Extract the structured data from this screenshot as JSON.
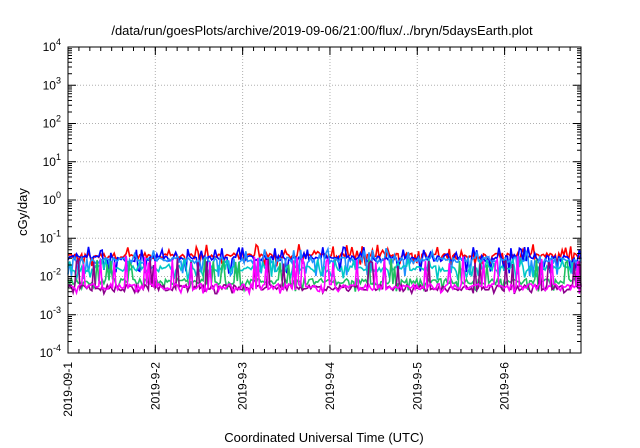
{
  "chart_data": {
    "type": "line",
    "title": "/data/run/goesPlots/archive/2019-09-06/21:00/flux/../bryn/5daysEarth.plot",
    "xlabel": "Coordinated Universal Time (UTC)",
    "ylabel": "cGy/day",
    "x_scale": "time",
    "y_scale": "log",
    "xlim": [
      "2019-09-01",
      "2019-09-06 21:00"
    ],
    "ylim": [
      0.0001,
      10000
    ],
    "x_ticks": [
      "2019-09-1",
      "2019-9-2",
      "2019-9-3",
      "2019-9-4",
      "2019-9-5",
      "2019-9-6"
    ],
    "y_ticks": [
      {
        "base": "10",
        "exp": "-4"
      },
      {
        "base": "10",
        "exp": "-3"
      },
      {
        "base": "10",
        "exp": "-2"
      },
      {
        "base": "10",
        "exp": "-1"
      },
      {
        "base": "10",
        "exp": "0"
      },
      {
        "base": "10",
        "exp": "1"
      },
      {
        "base": "10",
        "exp": "2"
      },
      {
        "base": "10",
        "exp": "3"
      },
      {
        "base": "10",
        "exp": "4"
      }
    ],
    "grid": true,
    "legend": "none",
    "series": [
      {
        "color": "#ff0000",
        "baseline": 0.035,
        "spike_min": 0.018,
        "spike_max": 0.07
      },
      {
        "color": "#0000ff",
        "baseline": 0.03,
        "spike_min": 0.012,
        "spike_max": 0.06
      },
      {
        "color": "#1e90ff",
        "baseline": 0.027,
        "spike_min": 0.01,
        "spike_max": 0.055
      },
      {
        "color": "#00c8c8",
        "baseline": 0.016,
        "spike_min": 0.008,
        "spike_max": 0.03
      },
      {
        "color": "#20c060",
        "baseline": 0.0075,
        "spike_min": 0.004,
        "spike_max": 0.03
      },
      {
        "color": "#8b008b",
        "baseline": 0.0052,
        "spike_min": 0.0035,
        "spike_max": 0.03
      },
      {
        "color": "#ff00ff",
        "baseline": 0.0055,
        "spike_min": 0.0035,
        "spike_max": 0.035
      }
    ]
  }
}
